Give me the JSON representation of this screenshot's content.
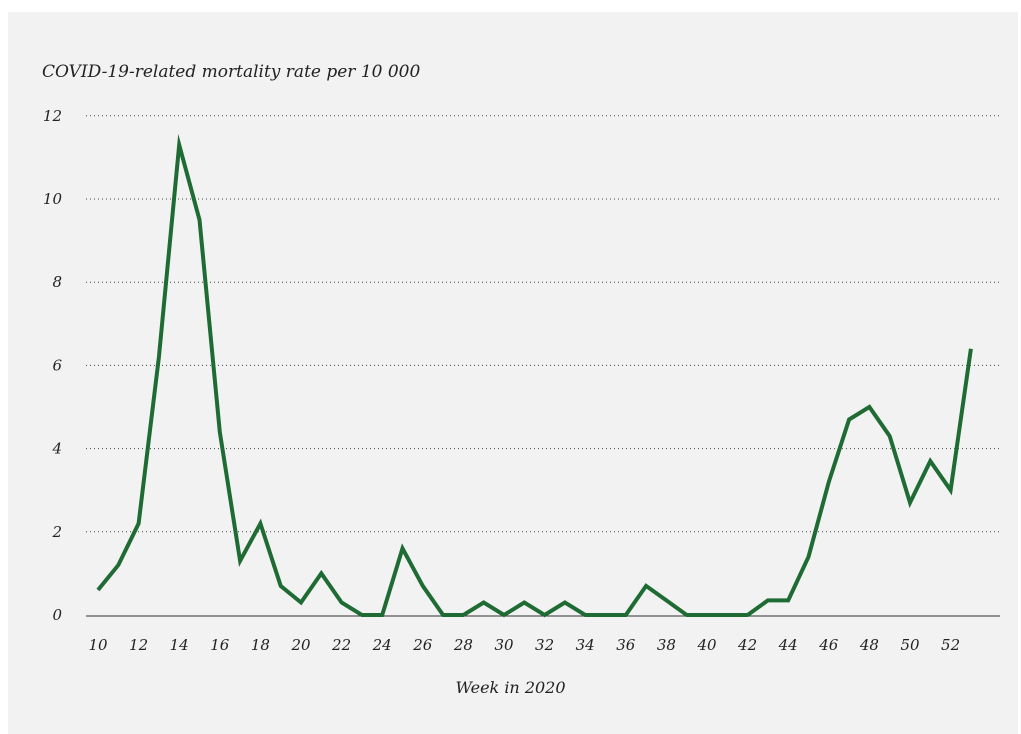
{
  "chart_data": {
    "type": "line",
    "title": "",
    "ylabel": "COVID-19-related mortality rate per 10 000",
    "xlabel": "Week in 2020",
    "xlim": [
      10,
      53
    ],
    "ylim": [
      0,
      12
    ],
    "x_ticks": [
      10,
      12,
      14,
      16,
      18,
      20,
      22,
      24,
      26,
      28,
      30,
      32,
      34,
      36,
      38,
      40,
      42,
      44,
      46,
      48,
      50,
      52
    ],
    "y_ticks": [
      0,
      2,
      4,
      6,
      8,
      10,
      12
    ],
    "grid": "horizontal dotted",
    "color": "#1f6b34",
    "x": [
      10,
      11,
      12,
      13,
      14,
      15,
      16,
      17,
      18,
      19,
      20,
      21,
      22,
      23,
      24,
      25,
      26,
      27,
      28,
      29,
      30,
      31,
      32,
      33,
      34,
      35,
      36,
      37,
      38,
      39,
      40,
      41,
      42,
      43,
      44,
      45,
      46,
      47,
      48,
      49,
      50,
      51,
      52,
      53
    ],
    "values": [
      0.6,
      1.2,
      2.2,
      6.2,
      11.3,
      9.5,
      4.4,
      1.3,
      2.2,
      0.7,
      0.3,
      1.0,
      0.3,
      0.0,
      0.0,
      1.6,
      0.7,
      0.0,
      0.0,
      0.3,
      0.0,
      0.3,
      0.0,
      0.3,
      0.0,
      0.0,
      0.0,
      0.7,
      0.35,
      0.0,
      0.0,
      0.0,
      0.0,
      0.35,
      0.35,
      1.4,
      3.2,
      4.7,
      5.0,
      4.3,
      2.7,
      3.7,
      3.0,
      6.4
    ]
  }
}
